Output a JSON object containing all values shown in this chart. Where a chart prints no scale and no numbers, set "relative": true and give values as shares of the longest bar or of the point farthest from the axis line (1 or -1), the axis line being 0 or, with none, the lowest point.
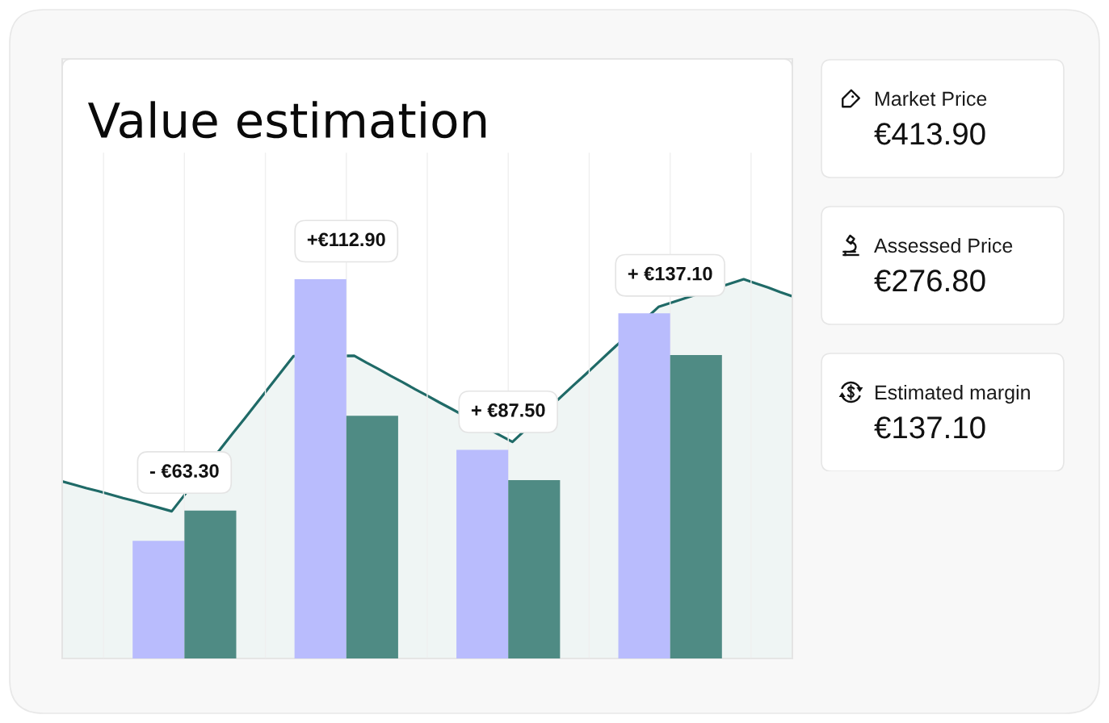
{
  "chart_data": [
    {
      "type": "bar",
      "title": "Value estimation",
      "relative": true,
      "categories": [
        null,
        null,
        null,
        null
      ],
      "grid": "x",
      "series": [
        {
          "color": "#b9bcfd",
          "values": [
            0.31,
            1.0,
            0.55,
            0.91
          ]
        },
        {
          "color": "#4f8b84",
          "values": [
            0.39,
            0.64,
            0.47,
            0.8
          ]
        }
      ],
      "annotations": [
        "- €63.30",
        "+€112.90",
        "+ €87.50",
        "+ €137.10"
      ]
    },
    {
      "type": "area",
      "relative": true,
      "color": "#1f6a67",
      "categories": [
        null,
        null,
        null,
        null,
        null,
        null,
        null,
        null,
        null,
        null,
        null,
        null,
        null,
        null,
        null,
        null,
        null,
        null,
        null,
        null,
        null,
        null,
        null,
        null,
        null,
        null,
        null,
        null,
        null,
        null,
        null,
        null,
        null,
        null,
        null,
        null,
        null,
        null,
        null,
        null,
        null,
        null,
        null,
        null,
        null,
        null,
        null,
        null,
        null,
        null,
        null,
        null,
        null,
        null,
        null,
        null,
        null,
        null,
        null,
        null,
        null
      ],
      "values": [
        0.467,
        0.458,
        0.449,
        0.441,
        0.432,
        0.423,
        0.415,
        0.406,
        0.397,
        0.388,
        0.429,
        null,
        null,
        0.552,
        0.593,
        0.633,
        0.674,
        0.715,
        0.756,
        0.797,
        null,
        null,
        null,
        null,
        0.798,
        0.78,
        0.763,
        0.745,
        0.728,
        0.71,
        0.693,
        0.675,
        0.658,
        null,
        null,
        null,
        0.588,
        0.571,
        null,
        null,
        null,
        null,
        0.72,
        0.749,
        0.779,
        0.809,
        null,
        null,
        null,
        0.927,
        null,
        null,
        null,
        null,
        null,
        null,
        1.0,
        0.989,
        0.978,
        0.966,
        0.955
      ]
    },
    {
      "type": "other",
      "annotations": [
        "Market Price",
        "€413.90",
        "Assessed Price",
        "€276.80",
        "Estimated margin",
        "€137.10"
      ]
    }
  ]
}
